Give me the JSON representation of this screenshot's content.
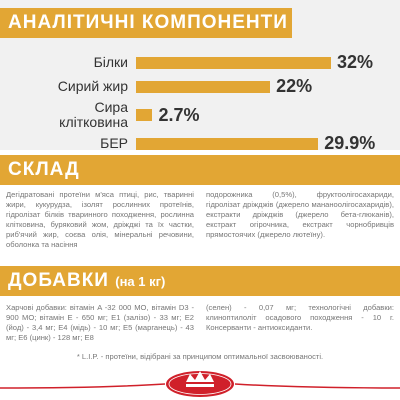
{
  "chart_data": {
    "type": "bar",
    "title": "АНАЛІТИЧНІ КОМПОНЕНТИ",
    "categories": [
      "Білки",
      "Сирий жир",
      "Сира клітковина",
      "БЕР"
    ],
    "values": [
      32,
      22,
      2.7,
      29.9
    ],
    "value_labels": [
      "32%",
      "22%",
      "2.7%",
      "29.9%"
    ],
    "color": "#e2a634"
  },
  "composition": {
    "title": "СКЛАД",
    "columns": [
      "Дегідратовані протеїни м'яса птиці, рис, тваринні жири, кукурудза, ізолят рослинних протеїнів, гідролізат білків тваринного походження, рослинна клітковина, буряковий жом, дріжджі та їх частки, риб'ячий жир, соєва олія, мінеральні речовини, оболонка та насіння",
      "подорожника (0,5%), фруктоолігосахариди, гідролізат дріжджів (джерело мананоолігосахаридів), екстракти дріжджів (джерело бета-глюканів), екстракт огірочника, екстракт чорнобривців прямостоячих (джерело лютеїну)."
    ]
  },
  "additives": {
    "title": "ДОБАВКИ",
    "subtitle": "(на 1 кг)",
    "columns": [
      "Харчові добавки: вітамін A -32 000 МО, вітамін D3 - 900 МО; вітамін E - 650 мг; E1 (залізо) - 33 мг; E2 (йод) - 3,4 мг; E4 (мідь) - 10 мг; E5 (марганець) - 43 мг; E6 (цинк) - 128 мг; E8",
      "(селен) - 0,07 мг; технологічні добавки: клиноптилоліт осадового походження - 10 г. Консерванти - антиоксиданти."
    ]
  },
  "footnote": "* L.I.P. - протеїни, відібрані за принципом оптимальної засвоюваності."
}
